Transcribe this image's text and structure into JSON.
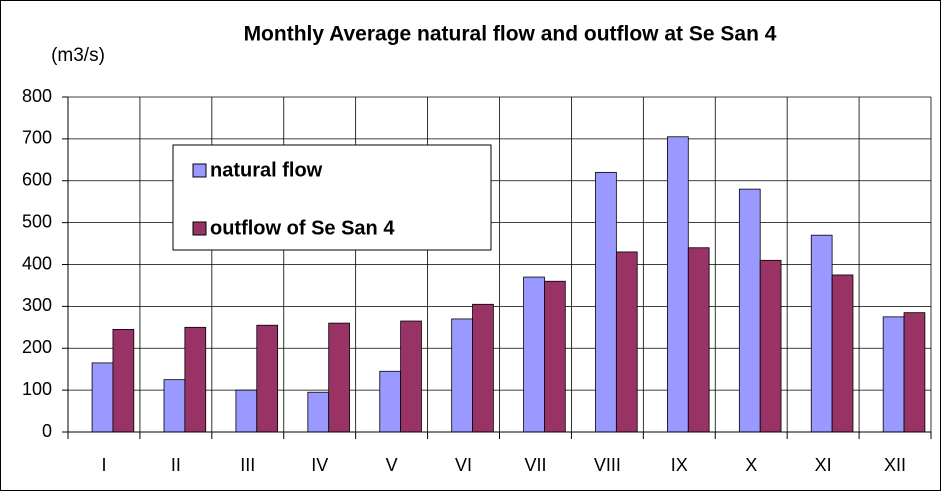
{
  "chart_data": {
    "type": "bar",
    "title": "Monthly Average natural flow and outflow at Se San 4",
    "y_label": "(m3/s)",
    "categories": [
      "I",
      "II",
      "III",
      "IV",
      "V",
      "VI",
      "VII",
      "VIII",
      "IX",
      "X",
      "XI",
      "XII"
    ],
    "series": [
      {
        "name": "natural flow",
        "color": "#9999ff",
        "values": [
          165,
          125,
          100,
          95,
          145,
          270,
          370,
          620,
          705,
          580,
          470,
          275
        ]
      },
      {
        "name": "outflow of Se San 4",
        "color": "#993366",
        "values": [
          245,
          250,
          255,
          260,
          265,
          305,
          360,
          430,
          440,
          410,
          375,
          285
        ]
      }
    ],
    "ylim": [
      0,
      800
    ],
    "yticks": [
      0,
      100,
      200,
      300,
      400,
      500,
      600,
      700,
      800
    ],
    "grid": true,
    "legend": "upper left"
  }
}
